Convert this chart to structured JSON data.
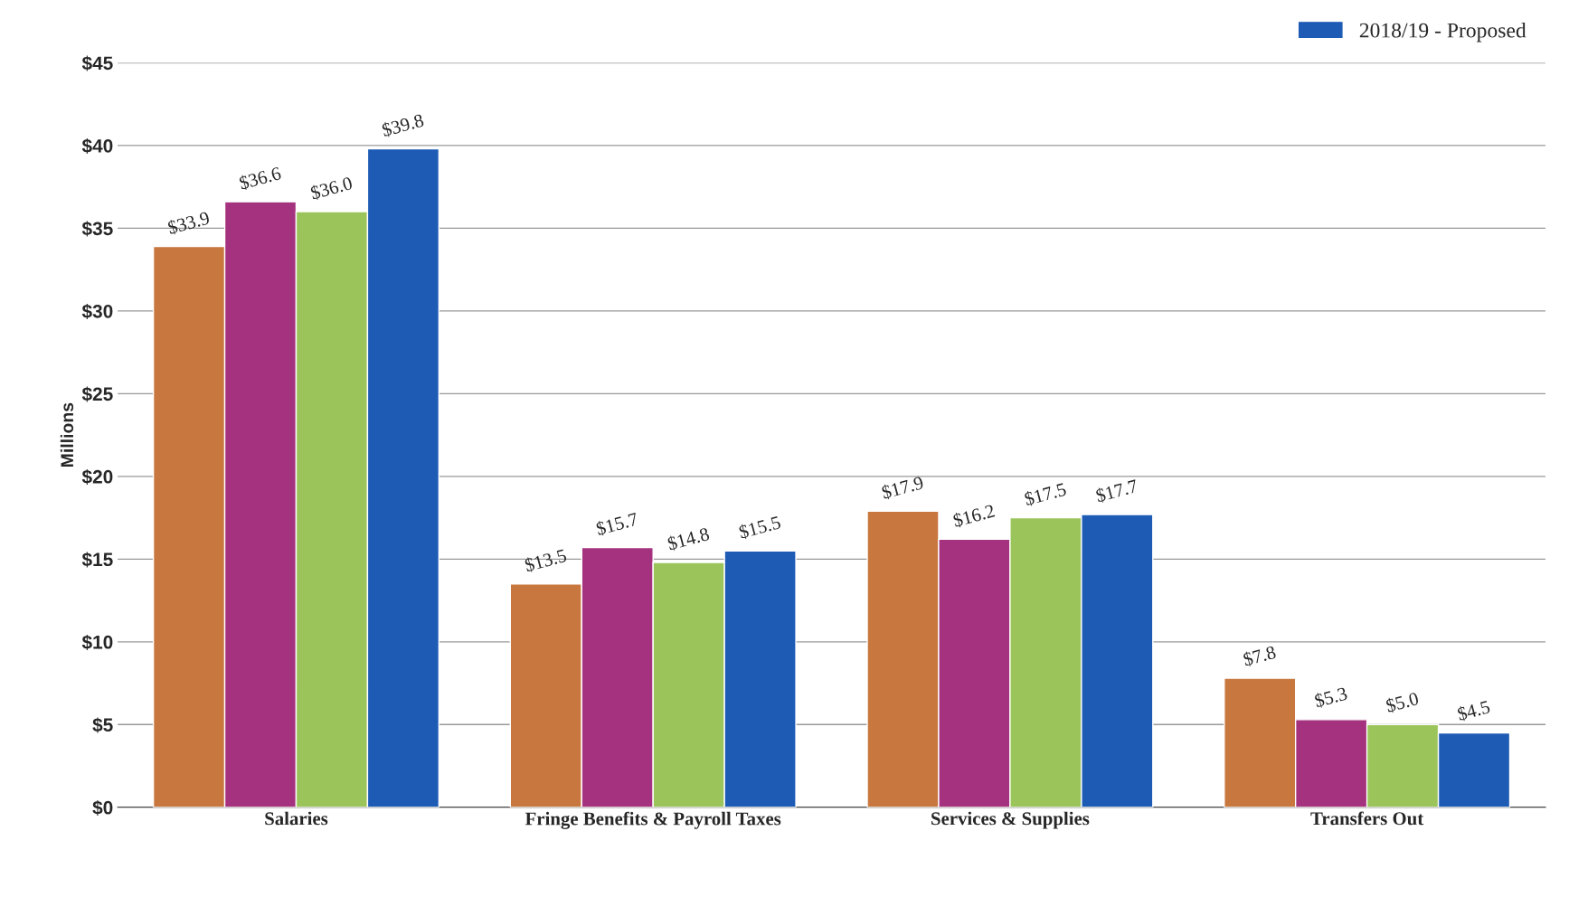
{
  "chart_data": {
    "type": "bar",
    "ylabel": "Millions",
    "categories": [
      "Salaries",
      "Fringe Benefits & Payroll Taxes",
      "Services & Supplies",
      "Transfers Out"
    ],
    "series": [
      {
        "color": "#c8773f",
        "values": [
          33.9,
          13.5,
          17.9,
          7.8
        ],
        "value_labels": [
          "$33.9",
          "$13.5",
          "$17.9",
          "$7.8"
        ]
      },
      {
        "color": "#a5327f",
        "values": [
          36.6,
          15.7,
          16.2,
          5.3
        ],
        "value_labels": [
          "$36.6",
          "$15.7",
          "$16.2",
          "$5.3"
        ]
      },
      {
        "color": "#9bc55a",
        "values": [
          36.0,
          14.8,
          17.5,
          5.0
        ],
        "value_labels": [
          "$36.0",
          "$14.8",
          "$17.5",
          "$5.0"
        ]
      },
      {
        "name": "2018/19 - Proposed",
        "color": "#1d5bb5",
        "values": [
          39.8,
          15.5,
          17.7,
          4.5
        ],
        "value_labels": [
          "$39.8",
          "$15.5",
          "$17.7",
          "$4.5"
        ]
      }
    ],
    "ylim": [
      0,
      45
    ],
    "yticks": [
      {
        "value": 0,
        "label": "$0"
      },
      {
        "value": 5,
        "label": "$5"
      },
      {
        "value": 10,
        "label": "$10"
      },
      {
        "value": 15,
        "label": "$15"
      },
      {
        "value": 20,
        "label": "$20"
      },
      {
        "value": 25,
        "label": "$25"
      },
      {
        "value": 30,
        "label": "$30"
      },
      {
        "value": 35,
        "label": "$35"
      },
      {
        "value": 40,
        "label": "$40"
      },
      {
        "value": 45,
        "label": "$45"
      }
    ],
    "grid": "y",
    "legend": "top right"
  }
}
